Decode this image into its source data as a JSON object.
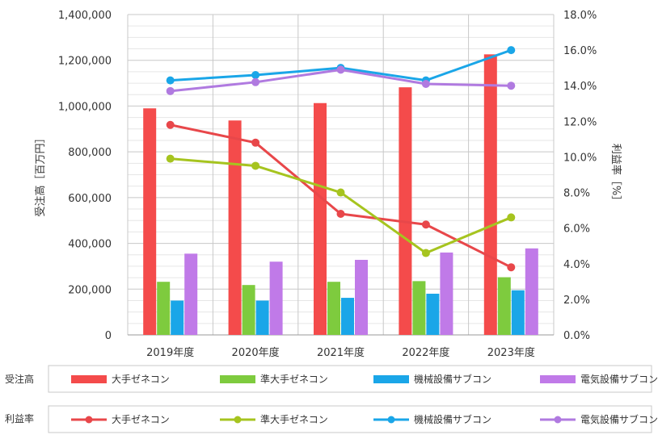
{
  "chart_data": {
    "type": "bar",
    "categories": [
      "2019年度",
      "2020年度",
      "2021年度",
      "2022年度",
      "2023年度"
    ],
    "ylabel": "受注高［百万円］",
    "y2label": "利益率［%］",
    "ylim": [
      0,
      1400000
    ],
    "y2lim": [
      0,
      18
    ],
    "yticks": [
      "0",
      "200,000",
      "400,000",
      "600,000",
      "800,000",
      "1,000,000",
      "1,200,000",
      "1,400,000"
    ],
    "y2ticks": [
      "0.0%",
      "2.0%",
      "4.0%",
      "6.0%",
      "8.0%",
      "10.0%",
      "12.0%",
      "14.0%",
      "16.0%",
      "18.0%"
    ],
    "grid": true,
    "bar_group_label": "受注高",
    "line_group_label": "利益率",
    "series": [
      {
        "name": "大手ゼネコン",
        "kind": "bar",
        "color": "#f44b4b",
        "values": [
          990000,
          937000,
          1013000,
          1082000,
          1226000
        ]
      },
      {
        "name": "準大手ゼネコン",
        "kind": "bar",
        "color": "#7ecb3e",
        "values": [
          232000,
          218000,
          232000,
          235000,
          252000
        ]
      },
      {
        "name": "機械設備サブコン",
        "kind": "bar",
        "color": "#1aa6e8",
        "values": [
          150000,
          150000,
          162000,
          180000,
          195000
        ]
      },
      {
        "name": "電気設備サブコン",
        "kind": "bar",
        "color": "#c07ae8",
        "values": [
          355000,
          320000,
          328000,
          360000,
          378000
        ]
      },
      {
        "name": "大手ゼネコン",
        "kind": "line",
        "color": "#e8474a",
        "values": [
          11.8,
          10.8,
          6.8,
          6.2,
          3.8
        ]
      },
      {
        "name": "準大手ゼネコン",
        "kind": "line",
        "color": "#a6c41f",
        "values": [
          9.9,
          9.5,
          8.0,
          4.6,
          6.6
        ]
      },
      {
        "name": "機械設備サブコン",
        "kind": "line",
        "color": "#1aa6e8",
        "values": [
          14.3,
          14.6,
          15.0,
          14.3,
          16.0
        ]
      },
      {
        "name": "電気設備サブコン",
        "kind": "line",
        "color": "#b07ae0",
        "values": [
          13.7,
          14.2,
          14.9,
          14.1,
          14.0
        ]
      }
    ]
  }
}
